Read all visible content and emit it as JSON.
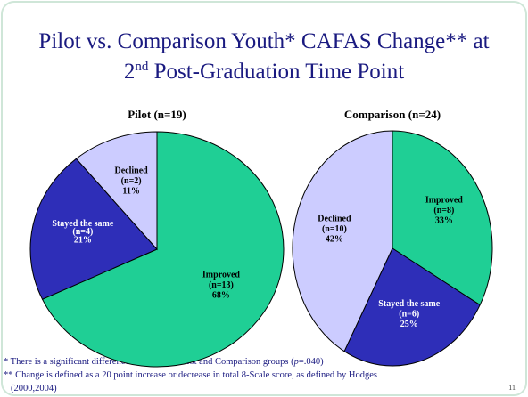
{
  "slide": {
    "title": [
      "Pilot vs. Comparison Youth* CAFAS Change** at",
      "2",
      "nd",
      " Post-Graduation Time Point"
    ],
    "footnotes": [
      [
        "* There is a significant difference between the Pilot and Comparison groups (",
        "p",
        "=.040)"
      ],
      [
        "** Change is defined as a 20 point increase or decrease in total 8-Scale score, as defined by Hodges",
        "(2000,2004)"
      ]
    ],
    "page_number": "11"
  },
  "chart_data": [
    {
      "type": "pie",
      "title": "Pilot (n=19)",
      "categories": [
        "Improved",
        "Stayed the same",
        "Declined"
      ],
      "n_labels": [
        "(n=13)",
        "(n=4)",
        "(n=2)"
      ],
      "values": [
        68,
        21,
        11
      ],
      "value_labels": [
        "68%",
        "21%",
        "11%"
      ],
      "colors": [
        "#1fcf95",
        "#2e2eb8",
        "#ccccff"
      ]
    },
    {
      "type": "pie",
      "title": "Comparison (n=24)",
      "categories": [
        "Improved",
        "Stayed the same",
        "Declined"
      ],
      "n_labels": [
        "(n=8)",
        "(n=6)",
        "(n=10)"
      ],
      "values": [
        33,
        25,
        42
      ],
      "value_labels": [
        "33%",
        "25%",
        "42%"
      ],
      "colors": [
        "#1fcf95",
        "#2e2eb8",
        "#ccccff"
      ]
    }
  ]
}
